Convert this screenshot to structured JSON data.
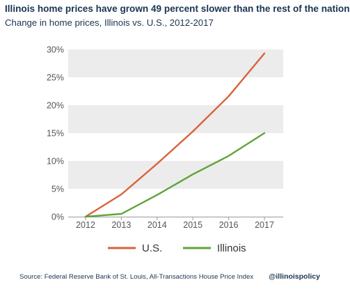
{
  "chart_data": {
    "type": "line",
    "title": "Illinois home prices have grown 49 percent slower than the rest of the nation",
    "subtitle": "Change in home prices, Illinois vs. U.S., 2012-2017",
    "x": [
      "2012",
      "2013",
      "2014",
      "2015",
      "2016",
      "2017"
    ],
    "series": [
      {
        "name": "U.S.",
        "color": "#d9613a",
        "values": [
          0,
          4.0,
          9.5,
          15.3,
          21.6,
          29.3
        ]
      },
      {
        "name": "Illinois",
        "color": "#5fa33a",
        "values": [
          0,
          0.5,
          3.9,
          7.6,
          10.9,
          15.0
        ]
      }
    ],
    "yticks": [
      "0%",
      "5%",
      "10%",
      "15%",
      "20%",
      "25%",
      "30%"
    ],
    "ylim": [
      0,
      30
    ],
    "grid": "alternating horizontal bands",
    "legend": "bottom-center",
    "band_color": "#ececec"
  },
  "footer": {
    "source": "Source: Federal Reserve Bank of St. Louis, All-Transactions House Price Index",
    "handle": "@illinoispolicy"
  }
}
